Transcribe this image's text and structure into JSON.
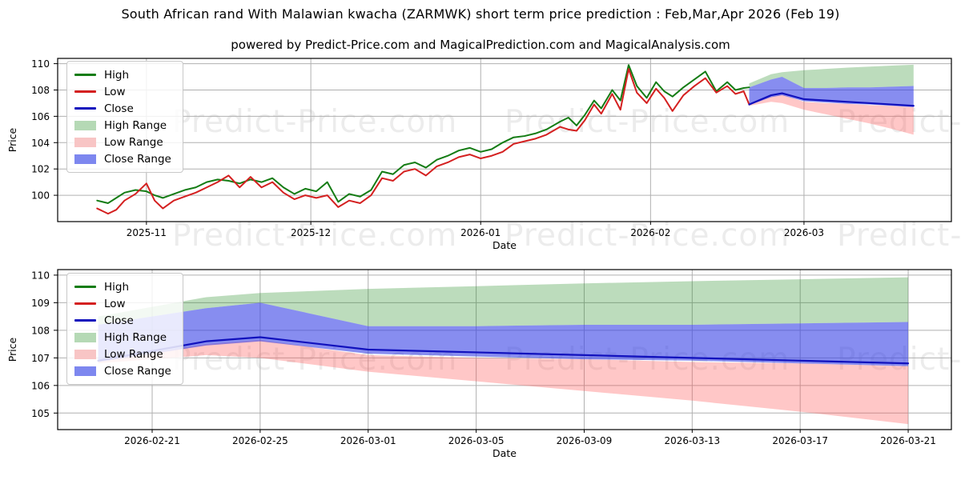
{
  "header": {
    "title": "South African rand With Malawian kwacha (ZARMWK) short term price prediction : Feb,Mar,Apr 2026 (Feb 19)",
    "subtitle": "powered by Predict-Price.com and MagicalPrediction.com and MagicalAnalysis.com"
  },
  "watermark": {
    "text": "Predict-Price.com"
  },
  "axes": {
    "xlabel": "Date",
    "ylabel": "Price"
  },
  "legend": {
    "items": [
      {
        "label": "High",
        "swatch": "line",
        "color": "#147c14"
      },
      {
        "label": "Low",
        "swatch": "line",
        "color": "#d42020"
      },
      {
        "label": "Close",
        "swatch": "line",
        "color": "#1111bd"
      },
      {
        "label": "High Range",
        "swatch": "rect",
        "color": "#b5d9b5"
      },
      {
        "label": "Low Range",
        "swatch": "rect",
        "color": "#f8c5c5"
      },
      {
        "label": "Close Range",
        "swatch": "rect",
        "color": "#7d87ef"
      }
    ]
  },
  "colors": {
    "high": "#147c14",
    "low": "#d42020",
    "close": "#1111bd",
    "high_range": "rgba(34,139,34,0.30)",
    "low_range": "rgba(255,80,80,0.32)",
    "close_range": "rgba(55,65,230,0.60)",
    "grid": "#b0b0b0",
    "axis": "#000000"
  },
  "chart_data": {
    "type": "line",
    "title": "South African rand With Malawian kwacha (ZARMWK) short term price prediction : Feb,Mar,Apr 2026 (Feb 19)",
    "day_zero_date": "2025-10-23",
    "prediction_start": "2026-02-19",
    "history": {
      "days": [
        0,
        2,
        3.5,
        5,
        7,
        9,
        10.5,
        12,
        14,
        16,
        18,
        20,
        22,
        24,
        26,
        28,
        30,
        32,
        34,
        36,
        38,
        40,
        42,
        44,
        46,
        48,
        50,
        52,
        54,
        56,
        58,
        60,
        62,
        64,
        66,
        68,
        70,
        72,
        74,
        76,
        78,
        80,
        82,
        84.5,
        86,
        87.5,
        89,
        90.7,
        92,
        94,
        95.5,
        97,
        98.5,
        100.3,
        102,
        103.5,
        105,
        107,
        109,
        111,
        113,
        115,
        116.5,
        118,
        119
      ],
      "high": [
        99.6,
        99.4,
        99.8,
        100.2,
        100.4,
        100.3,
        100.0,
        99.8,
        100.1,
        100.4,
        100.6,
        101.0,
        101.2,
        101.1,
        100.9,
        101.2,
        101.0,
        101.3,
        100.6,
        100.1,
        100.5,
        100.3,
        101.0,
        99.5,
        100.1,
        99.9,
        100.4,
        101.8,
        101.6,
        102.3,
        102.5,
        102.1,
        102.7,
        103.0,
        103.4,
        103.6,
        103.3,
        103.5,
        104.0,
        104.4,
        104.5,
        104.7,
        105.0,
        105.6,
        105.9,
        105.3,
        106.1,
        107.2,
        106.6,
        108.0,
        107.2,
        109.9,
        108.3,
        107.4,
        108.6,
        107.9,
        107.5,
        108.2,
        108.8,
        109.4,
        107.9,
        108.6,
        108.0,
        108.15,
        108.2
      ],
      "low": [
        99.0,
        98.6,
        98.9,
        99.6,
        100.1,
        100.9,
        99.6,
        99.0,
        99.6,
        99.9,
        100.2,
        100.6,
        101.0,
        101.5,
        100.6,
        101.4,
        100.6,
        101.0,
        100.2,
        99.7,
        100.0,
        99.8,
        100.0,
        99.1,
        99.6,
        99.4,
        100.0,
        101.3,
        101.1,
        101.8,
        102.0,
        101.5,
        102.2,
        102.5,
        102.9,
        103.1,
        102.8,
        103.0,
        103.3,
        103.9,
        104.1,
        104.3,
        104.6,
        105.2,
        105.0,
        104.9,
        105.7,
        106.9,
        106.2,
        107.7,
        106.5,
        109.6,
        107.8,
        107.0,
        108.1,
        107.4,
        106.4,
        107.6,
        108.3,
        108.9,
        107.8,
        108.3,
        107.7,
        107.9,
        106.9
      ]
    },
    "forecast": {
      "days": [
        119,
        123,
        125,
        129,
        133,
        137,
        141,
        145,
        149
      ],
      "close": [
        106.9,
        107.6,
        107.75,
        107.3,
        107.2,
        107.1,
        107.0,
        106.9,
        106.8
      ],
      "close_top": [
        108.2,
        108.8,
        109.0,
        108.15,
        108.15,
        108.2,
        108.2,
        108.25,
        108.3
      ],
      "close_bot": [
        106.85,
        107.45,
        107.6,
        107.15,
        107.05,
        106.95,
        106.9,
        106.8,
        106.7
      ],
      "high_top": [
        108.5,
        109.2,
        109.35,
        109.5,
        109.6,
        109.7,
        109.78,
        109.85,
        109.92
      ],
      "low_top": [
        106.9,
        107.5,
        107.65,
        107.1,
        107.0,
        106.95,
        106.85,
        106.8,
        106.7
      ],
      "low_bot": [
        106.8,
        107.1,
        107.0,
        106.5,
        106.15,
        105.8,
        105.45,
        105.05,
        104.6
      ]
    },
    "charts": [
      {
        "name": "history-with-forecast",
        "xlabel": "Date",
        "ylabel": "Price",
        "xlim": [
          -7.2,
          155.9
        ],
        "ylim": [
          98.0,
          110.4
        ],
        "yticks": [
          100,
          102,
          104,
          106,
          108,
          110
        ],
        "xticks": [
          {
            "day": 9,
            "label": "2025-11"
          },
          {
            "day": 39,
            "label": "2025-12"
          },
          {
            "day": 70,
            "label": "2026-01"
          },
          {
            "day": 101,
            "label": "2026-02"
          },
          {
            "day": 129,
            "label": "2026-03"
          }
        ],
        "show_history": true,
        "legend_position": "upper left",
        "grid": true
      },
      {
        "name": "forecast-detail",
        "xlabel": "Date",
        "ylabel": "Price",
        "xlim": [
          117.5,
          150.6
        ],
        "ylim": [
          104.4,
          110.2
        ],
        "yticks": [
          105,
          106,
          107,
          108,
          109,
          110
        ],
        "xticks": [
          {
            "day": 121,
            "label": "2026-02-21"
          },
          {
            "day": 125,
            "label": "2026-02-25"
          },
          {
            "day": 129,
            "label": "2026-03-01"
          },
          {
            "day": 133,
            "label": "2026-03-05"
          },
          {
            "day": 137,
            "label": "2026-03-09"
          },
          {
            "day": 141,
            "label": "2026-03-13"
          },
          {
            "day": 145,
            "label": "2026-03-17"
          },
          {
            "day": 149,
            "label": "2026-03-21"
          }
        ],
        "show_history": false,
        "legend_position": "upper left",
        "grid": true
      }
    ]
  }
}
